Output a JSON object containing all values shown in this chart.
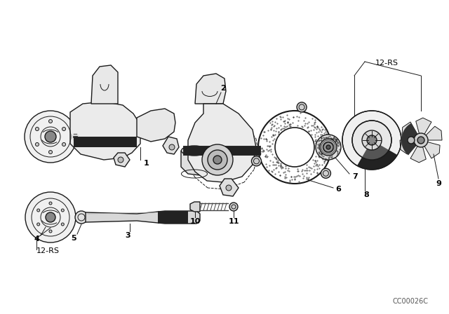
{
  "background_color": "#ffffff",
  "line_color": "#1a1a1a",
  "text_color": "#000000",
  "labels": {
    "12rs_top": "12-RS",
    "12rs_bottom": "12-RS",
    "copyright": "CC00026C"
  },
  "fig_w": 6.4,
  "fig_h": 4.48,
  "dpi": 100
}
